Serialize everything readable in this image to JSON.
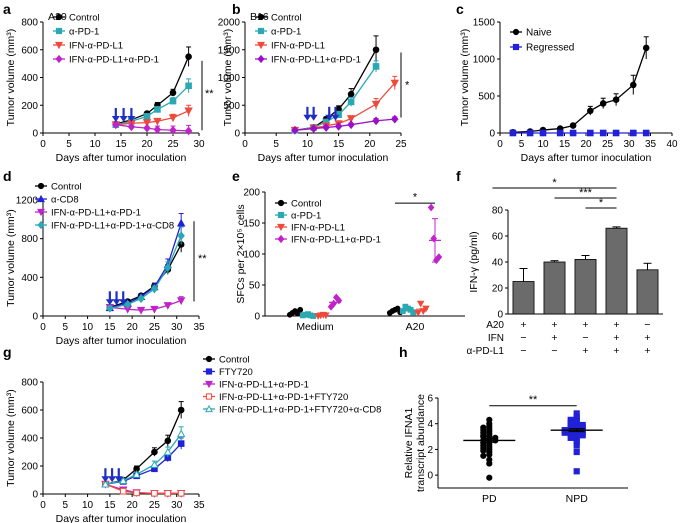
{
  "figure_title": "Multi-panel figure: tumor growth and immune response after IFN-α-PD-L1 treatment",
  "colors": {
    "black": "#000000",
    "teal": "#2aa8b4",
    "blue": "#2121d6",
    "red": "#ee4a3c",
    "magenta": "#c023c9",
    "purple": "#9a10c8",
    "bar_gray": "#6b6b6b",
    "arrow_blue": "#1f2fc4"
  },
  "chart_data": [
    {
      "panel": "a",
      "type": "line",
      "title": "A20",
      "xlabel": "Days after tumor inoculation",
      "ylabel": "Tumor volume (mm³)",
      "xlim": [
        0,
        30
      ],
      "ylim": [
        0,
        800
      ],
      "xticks": [
        0,
        5,
        10,
        15,
        20,
        25,
        30
      ],
      "yticks": [
        0,
        200,
        400,
        600,
        800
      ],
      "arrows_at_days": [
        14,
        15.5,
        17
      ],
      "significance": [
        {
          "text": "**",
          "between": "Control vs IFN-α-PD-L1+α-PD-1"
        }
      ],
      "series": [
        {
          "name": "Control",
          "color": "#000000",
          "marker": "circle",
          "x": [
            14,
            17,
            20,
            22,
            25,
            28
          ],
          "y": [
            65,
            95,
            140,
            200,
            290,
            550
          ],
          "err": [
            8,
            10,
            15,
            20,
            25,
            70
          ]
        },
        {
          "name": "α-PD-1",
          "color": "#2aa8b4",
          "marker": "square",
          "x": [
            14,
            17,
            20,
            22,
            25,
            28
          ],
          "y": [
            60,
            85,
            120,
            170,
            230,
            340
          ],
          "err": [
            8,
            10,
            12,
            15,
            25,
            50
          ]
        },
        {
          "name": "IFN-α-PD-L1",
          "color": "#ee4a3c",
          "marker": "triangle-down",
          "x": [
            14,
            17,
            20,
            22,
            25,
            28
          ],
          "y": [
            60,
            70,
            75,
            85,
            110,
            160
          ],
          "err": [
            8,
            8,
            10,
            15,
            25,
            40
          ]
        },
        {
          "name": "IFN-α-PD-L1+α-PD-1",
          "color": "#c023c9",
          "marker": "diamond",
          "x": [
            14,
            17,
            20,
            22,
            25,
            28
          ],
          "y": [
            60,
            45,
            35,
            25,
            20,
            15
          ],
          "err": [
            8,
            8,
            10,
            25,
            30,
            40
          ]
        }
      ]
    },
    {
      "panel": "b",
      "type": "line",
      "title": "B16",
      "xlabel": "Days after tumor inoculation",
      "ylabel": "Tumor volume (mm³)",
      "xlim": [
        0,
        25
      ],
      "ylim": [
        0,
        2000
      ],
      "xticks": [
        0,
        5,
        10,
        15,
        20,
        25
      ],
      "yticks": [
        0,
        500,
        1000,
        1500,
        2000
      ],
      "arrows_at_days": [
        10,
        11,
        13.5,
        14.5
      ],
      "significance": [
        {
          "text": "*",
          "between": "Control vs IFN-α-PD-L1+α-PD-1"
        }
      ],
      "series": [
        {
          "name": "Control",
          "color": "#000000",
          "marker": "circle",
          "x": [
            8,
            11,
            13,
            15,
            17,
            21
          ],
          "y": [
            50,
            100,
            250,
            430,
            700,
            1500
          ],
          "err": [
            10,
            20,
            40,
            60,
            100,
            250
          ]
        },
        {
          "name": "α-PD-1",
          "color": "#2aa8b4",
          "marker": "square",
          "x": [
            8,
            11,
            13,
            15,
            17,
            21
          ],
          "y": [
            50,
            100,
            200,
            330,
            560,
            1200
          ],
          "err": [
            10,
            20,
            40,
            60,
            80,
            100
          ]
        },
        {
          "name": "IFN-α-PD-L1",
          "color": "#ee4a3c",
          "marker": "triangle-down",
          "x": [
            8,
            11,
            13,
            15,
            17,
            21,
            24
          ],
          "y": [
            50,
            90,
            130,
            170,
            260,
            520,
            900
          ],
          "err": [
            10,
            15,
            20,
            30,
            50,
            100,
            120
          ]
        },
        {
          "name": "IFN-α-PD-L1+α-PD-1",
          "color": "#9a10c8",
          "marker": "diamond",
          "x": [
            8,
            11,
            13,
            15,
            17,
            21,
            24
          ],
          "y": [
            50,
            80,
            100,
            120,
            150,
            220,
            250
          ],
          "err": [
            10,
            15,
            15,
            20,
            25,
            40,
            40
          ]
        }
      ]
    },
    {
      "panel": "c",
      "type": "line",
      "title": "",
      "xlabel": "Days after tumor inoculation",
      "ylabel": "Tumor volume (mm³)",
      "xlim": [
        0,
        40
      ],
      "ylim": [
        0,
        1500
      ],
      "xticks": [
        0,
        5,
        10,
        15,
        20,
        25,
        30,
        35,
        40
      ],
      "yticks": [
        0,
        500,
        1000,
        1500
      ],
      "series": [
        {
          "name": "Naive",
          "color": "#000000",
          "marker": "circle",
          "x": [
            3,
            7,
            10,
            14,
            17,
            21,
            24,
            27,
            31,
            34
          ],
          "y": [
            10,
            20,
            40,
            60,
            100,
            300,
            400,
            450,
            650,
            1150
          ],
          "err": [
            5,
            5,
            10,
            15,
            30,
            60,
            70,
            80,
            130,
            150
          ]
        },
        {
          "name": "Regressed",
          "color": "#2121d6",
          "marker": "square",
          "x": [
            3,
            7,
            10,
            14,
            17,
            21,
            24,
            27,
            31,
            34
          ],
          "y": [
            0,
            0,
            0,
            0,
            0,
            0,
            0,
            0,
            0,
            0
          ],
          "err": []
        }
      ]
    },
    {
      "panel": "d",
      "type": "line",
      "title": "",
      "xlabel": "Days after tumor inoculation",
      "ylabel": "Tumor volume (mm³)",
      "xlim": [
        0,
        35
      ],
      "ylim": [
        0,
        1200
      ],
      "xticks": [
        0,
        5,
        10,
        15,
        20,
        25,
        30,
        35
      ],
      "yticks": [
        0,
        400,
        800,
        1200
      ],
      "arrows_at_days": [
        15,
        16.5,
        18
      ],
      "significance": [
        {
          "text": "**",
          "between": "Control vs IFN-α-PD-L1+α-PD-1"
        }
      ],
      "series": [
        {
          "name": "Control",
          "color": "#000000",
          "marker": "circle",
          "x": [
            15,
            19,
            22,
            25,
            28,
            31
          ],
          "y": [
            90,
            150,
            210,
            310,
            480,
            740
          ],
          "err": [
            10,
            15,
            20,
            30,
            50,
            80
          ]
        },
        {
          "name": "α-CD8",
          "color": "#2121d6",
          "marker": "triangle-up",
          "x": [
            15,
            19,
            22,
            25,
            28,
            31
          ],
          "y": [
            85,
            130,
            200,
            300,
            530,
            960
          ],
          "err": [
            10,
            15,
            20,
            30,
            60,
            100
          ]
        },
        {
          "name": "IFN-α-PD-L1+α-PD-1",
          "color": "#c023c9",
          "marker": "triangle-down",
          "x": [
            15,
            19,
            22,
            25,
            28,
            31
          ],
          "y": [
            90,
            70,
            60,
            70,
            110,
            160
          ],
          "err": [
            10,
            10,
            10,
            15,
            20,
            40
          ]
        },
        {
          "name": "IFN-α-PD-L1+α-PD-1+α-CD8",
          "color": "#2aa8b4",
          "marker": "diamond",
          "x": [
            15,
            19,
            22,
            25,
            28,
            31
          ],
          "y": [
            80,
            120,
            180,
            280,
            500,
            830
          ],
          "err": [
            10,
            15,
            20,
            30,
            60,
            90
          ]
        }
      ]
    },
    {
      "panel": "e",
      "type": "scatter",
      "title": "",
      "xlabel": "",
      "ylabel": "SFCs per 2×10⁵ cells",
      "ylim": [
        0,
        200
      ],
      "yticks": [
        0,
        50,
        100,
        150,
        200
      ],
      "categories": [
        "Medium",
        "A20"
      ],
      "significance": [
        {
          "text": "*",
          "category": "A20"
        }
      ],
      "series": [
        {
          "name": "Control",
          "color": "#000000",
          "marker": "circle",
          "values": [
            [
              2,
              5,
              8,
              4,
              10
            ],
            [
              5,
              8,
              10,
              12,
              6
            ]
          ],
          "means": [
            5,
            8
          ]
        },
        {
          "name": "α-PD-1",
          "color": "#2aa8b4",
          "marker": "square",
          "values": [
            [
              1,
              2,
              3,
              1,
              0
            ],
            [
              8,
              15,
              12,
              10,
              6
            ]
          ],
          "means": [
            1,
            10
          ]
        },
        {
          "name": "IFN-α-PD-L1",
          "color": "#ee4a3c",
          "marker": "triangle-down",
          "values": [
            [
              0,
              1,
              2,
              1
            ],
            [
              5,
              20,
              8,
              12
            ]
          ],
          "means": [
            1,
            11
          ]
        },
        {
          "name": "IFN-α-PD-L1+α-PD-1",
          "color": "#c023c9",
          "marker": "diamond",
          "values": [
            [
              15,
              20,
              30,
              25
            ],
            [
              175,
              125,
              90,
              95
            ]
          ],
          "means": [
            22,
            122
          ]
        }
      ]
    },
    {
      "panel": "f",
      "type": "bar",
      "title": "",
      "xlabel": "",
      "ylabel": "IFN-γ (pg/ml)",
      "ylim": [
        0,
        80
      ],
      "yticks": [
        0,
        20,
        40,
        60,
        80
      ],
      "values": [
        25,
        40,
        42,
        66,
        34
      ],
      "errors": [
        10,
        1,
        3,
        1,
        5
      ],
      "condition_rows": [
        {
          "label": "A20",
          "marks": [
            "+",
            "+",
            "+",
            "+",
            "−"
          ]
        },
        {
          "label": "IFN",
          "marks": [
            "−",
            "+",
            "−",
            "+",
            "+"
          ]
        },
        {
          "label": "α-PD-L1",
          "marks": [
            "−",
            "−",
            "+",
            "+",
            "+"
          ]
        }
      ],
      "significance": [
        {
          "text": "*",
          "from_bar": 1,
          "to_bar": 4
        },
        {
          "text": "***",
          "from_bar": 2,
          "to_bar": 4
        },
        {
          "text": "*",
          "from_bar": 3,
          "to_bar": 4
        }
      ]
    },
    {
      "panel": "g",
      "type": "line",
      "title": "",
      "xlabel": "Days after tumor inoculation",
      "ylabel": "Tumor volume (mm³)",
      "xlim": [
        0,
        35
      ],
      "ylim": [
        0,
        800
      ],
      "xticks": [
        0,
        5,
        10,
        15,
        20,
        25,
        30,
        35
      ],
      "yticks": [
        0,
        200,
        400,
        600,
        800
      ],
      "arrows_at_days": [
        14,
        15.5,
        17
      ],
      "series": [
        {
          "name": "Control",
          "color": "#000000",
          "marker": "circle",
          "x": [
            14,
            18,
            21,
            25,
            28,
            31
          ],
          "y": [
            70,
            100,
            180,
            300,
            380,
            600
          ],
          "err": [
            10,
            15,
            20,
            30,
            40,
            60
          ]
        },
        {
          "name": "FTY720",
          "color": "#2121d6",
          "marker": "square",
          "x": [
            14,
            18,
            21,
            25,
            28,
            31
          ],
          "y": [
            70,
            90,
            130,
            180,
            260,
            360
          ],
          "err": [
            10,
            12,
            15,
            20,
            30,
            40
          ]
        },
        {
          "name": "IFN-α-PD-L1+α-PD-1",
          "color": "#c023c9",
          "marker": "triangle-down",
          "x": [
            14,
            18,
            21,
            25,
            28,
            31
          ],
          "y": [
            70,
            30,
            10,
            5,
            5,
            5
          ],
          "err": [
            10,
            8,
            5,
            3,
            3,
            3
          ]
        },
        {
          "name": "IFN-α-PD-L1+α-PD-1+FTY720",
          "color": "#ee4a3c",
          "marker": "square-open",
          "x": [
            14,
            18,
            21,
            25,
            28,
            31
          ],
          "y": [
            70,
            20,
            8,
            5,
            5,
            5
          ],
          "err": [
            10,
            6,
            4,
            3,
            3,
            3
          ]
        },
        {
          "name": "IFN-α-PD-L1+α-PD-1+FTY720+α-CD8",
          "color": "#2aa8b4",
          "marker": "triangle-up-open",
          "x": [
            14,
            18,
            21,
            25,
            28,
            31
          ],
          "y": [
            70,
            95,
            140,
            210,
            300,
            430
          ],
          "err": [
            10,
            12,
            15,
            25,
            35,
            50
          ]
        }
      ]
    },
    {
      "panel": "h",
      "type": "scatter",
      "title": "",
      "xlabel": "",
      "ylabel": "Relative IFNA1 transcript abundance",
      "ylim": [
        -1,
        6
      ],
      "yticks": [
        0,
        2,
        4,
        6
      ],
      "categories": [
        "PD",
        "NPD"
      ],
      "significance": [
        {
          "text": "**",
          "between": "PD vs NPD"
        }
      ],
      "series": [
        {
          "name": "PD",
          "color": "#000000",
          "marker": "circle",
          "mean": 2.7,
          "sem": 0.15,
          "values": [
            4.3,
            4.0,
            3.8,
            3.7,
            3.6,
            3.5,
            3.4,
            3.3,
            3.2,
            3.1,
            3.0,
            3.0,
            2.9,
            2.8,
            2.7,
            2.7,
            2.6,
            2.5,
            2.4,
            2.3,
            2.2,
            2.1,
            2.0,
            1.9,
            1.8,
            1.6,
            1.5,
            1.2,
            0.9,
            -0.2
          ]
        },
        {
          "name": "NPD",
          "color": "#2121d6",
          "marker": "square",
          "mean": 3.5,
          "sem": 0.12,
          "values": [
            4.8,
            4.5,
            4.4,
            4.3,
            4.2,
            4.1,
            4.0,
            3.9,
            3.9,
            3.8,
            3.7,
            3.7,
            3.6,
            3.6,
            3.5,
            3.5,
            3.4,
            3.4,
            3.3,
            3.3,
            3.2,
            3.2,
            3.1,
            3.0,
            2.9,
            2.8,
            2.6,
            2.3,
            1.8,
            0.3
          ]
        }
      ]
    }
  ]
}
